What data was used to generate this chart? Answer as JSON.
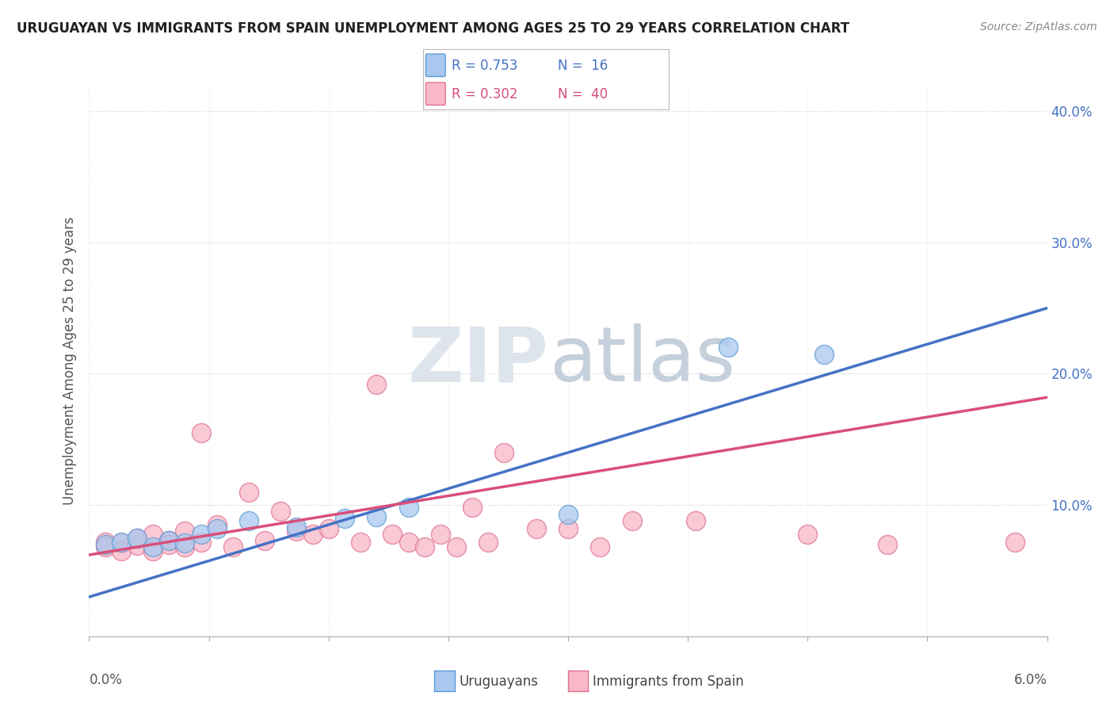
{
  "title": "URUGUAYAN VS IMMIGRANTS FROM SPAIN UNEMPLOYMENT AMONG AGES 25 TO 29 YEARS CORRELATION CHART",
  "source": "Source: ZipAtlas.com",
  "ylabel": "Unemployment Among Ages 25 to 29 years",
  "xmin": 0.0,
  "xmax": 0.06,
  "ymin": 0.0,
  "ymax": 0.42,
  "yticks": [
    0.0,
    0.1,
    0.2,
    0.3,
    0.4
  ],
  "ytick_labels": [
    "",
    "10.0%",
    "20.0%",
    "30.0%",
    "40.0%"
  ],
  "uruguayan_color": "#a8c8f0",
  "uruguayan_edge": "#5b9bd5",
  "spain_color": "#f8b8c8",
  "spain_edge": "#e07090",
  "blue_line_color": "#4472c4",
  "pink_line_color": "#d94f7a",
  "uruguayan_x": [
    0.001,
    0.002,
    0.003,
    0.004,
    0.005,
    0.006,
    0.007,
    0.008,
    0.01,
    0.013,
    0.016,
    0.018,
    0.02,
    0.03,
    0.04,
    0.046
  ],
  "uruguayan_y": [
    0.07,
    0.072,
    0.075,
    0.068,
    0.073,
    0.071,
    0.078,
    0.082,
    0.088,
    0.083,
    0.09,
    0.091,
    0.098,
    0.093,
    0.22,
    0.215
  ],
  "spain_x": [
    0.001,
    0.001,
    0.002,
    0.002,
    0.003,
    0.003,
    0.004,
    0.004,
    0.005,
    0.005,
    0.006,
    0.006,
    0.007,
    0.007,
    0.008,
    0.009,
    0.01,
    0.011,
    0.012,
    0.013,
    0.014,
    0.015,
    0.017,
    0.018,
    0.019,
    0.02,
    0.021,
    0.022,
    0.023,
    0.024,
    0.025,
    0.026,
    0.028,
    0.03,
    0.032,
    0.034,
    0.038,
    0.045,
    0.05,
    0.058
  ],
  "spain_y": [
    0.072,
    0.068,
    0.071,
    0.065,
    0.069,
    0.075,
    0.078,
    0.065,
    0.073,
    0.07,
    0.068,
    0.08,
    0.072,
    0.155,
    0.085,
    0.068,
    0.11,
    0.073,
    0.095,
    0.08,
    0.078,
    0.082,
    0.072,
    0.192,
    0.078,
    0.072,
    0.068,
    0.078,
    0.068,
    0.098,
    0.072,
    0.14,
    0.082,
    0.082,
    0.068,
    0.088,
    0.088,
    0.078,
    0.07,
    0.072
  ],
  "blue_line_x0": 0.0,
  "blue_line_y0": 0.03,
  "blue_line_x1": 0.06,
  "blue_line_y1": 0.25,
  "pink_line_x0": 0.0,
  "pink_line_y0": 0.062,
  "pink_line_x1": 0.06,
  "pink_line_y1": 0.182
}
